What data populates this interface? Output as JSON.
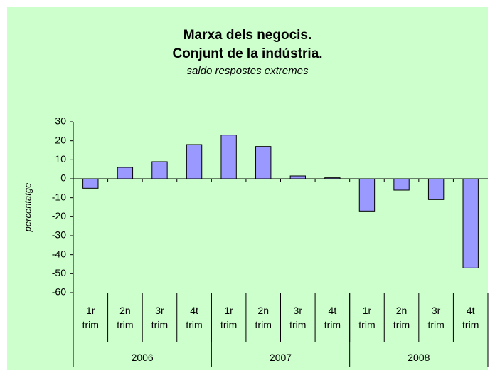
{
  "chart_data": {
    "type": "bar",
    "title": "Marxa dels negocis.",
    "subtitle_line": "Conjunt de la indústria.",
    "subtitle": "saldo respostes extremes",
    "y_label": "percentatge",
    "categories": [
      "1r trim",
      "2n trim",
      "3r trim",
      "4t trim",
      "1r trim",
      "2n trim",
      "3r trim",
      "4t trim",
      "1r trim",
      "2n trim",
      "3r trim",
      "4t trim"
    ],
    "groups": [
      "2006",
      "2007",
      "2008"
    ],
    "values": [
      -5,
      6,
      9,
      18,
      23,
      17,
      1.5,
      0.5,
      -17,
      -6,
      -11,
      -47
    ],
    "color": "#9999ff",
    "background": "#ccffcc",
    "ylim": [
      -60,
      30
    ],
    "yticks": [
      -60,
      -50,
      -40,
      -30,
      -20,
      -10,
      0,
      10,
      20,
      30
    ]
  }
}
